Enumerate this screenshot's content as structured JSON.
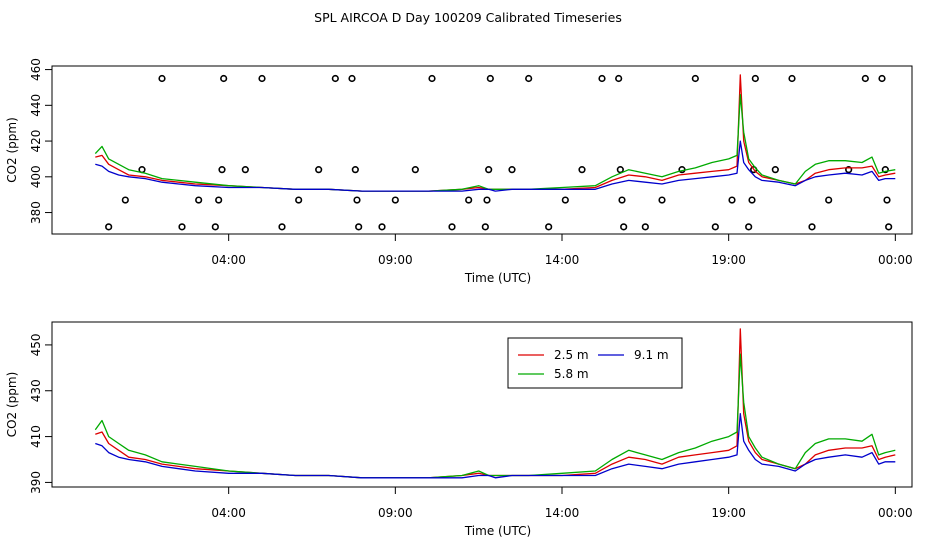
{
  "page_title": "SPL AIRCOA D  Day 100209  Calibrated Timeseries",
  "colors": {
    "s2_5": "#dd0000",
    "s5_8": "#00aa00",
    "s9_1": "#0000cc",
    "axis": "#000000"
  },
  "chart_data": [
    {
      "type": "line",
      "title": "SPL AIRCOA D  Day 100209  Calibrated Timeseries",
      "xlabel": "Time (UTC)",
      "ylabel": "CO2 (ppm)",
      "xlim": [
        -1.3,
        24.5
      ],
      "ylim": [
        368,
        462
      ],
      "x_ticks": [
        4,
        9,
        14,
        19,
        24
      ],
      "x_tick_labels": [
        "04:00",
        "09:00",
        "14:00",
        "19:00",
        "00:00"
      ],
      "y_ticks": [
        380,
        400,
        420,
        440,
        460
      ],
      "y_tick_labels": [
        "380",
        "400",
        "420",
        "440",
        "460"
      ],
      "calibration_points": [
        {
          "x": 0.4,
          "y": 372
        },
        {
          "x": 0.9,
          "y": 387
        },
        {
          "x": 1.4,
          "y": 404
        },
        {
          "x": 2.0,
          "y": 455
        },
        {
          "x": 2.6,
          "y": 372
        },
        {
          "x": 3.1,
          "y": 387
        },
        {
          "x": 3.6,
          "y": 372
        },
        {
          "x": 3.7,
          "y": 387
        },
        {
          "x": 3.8,
          "y": 404
        },
        {
          "x": 3.85,
          "y": 455
        },
        {
          "x": 4.5,
          "y": 404
        },
        {
          "x": 5.0,
          "y": 455
        },
        {
          "x": 5.6,
          "y": 372
        },
        {
          "x": 6.1,
          "y": 387
        },
        {
          "x": 6.7,
          "y": 404
        },
        {
          "x": 7.2,
          "y": 455
        },
        {
          "x": 7.7,
          "y": 455
        },
        {
          "x": 7.8,
          "y": 404
        },
        {
          "x": 7.85,
          "y": 387
        },
        {
          "x": 7.9,
          "y": 372
        },
        {
          "x": 8.6,
          "y": 372
        },
        {
          "x": 9.0,
          "y": 387
        },
        {
          "x": 9.6,
          "y": 404
        },
        {
          "x": 10.1,
          "y": 455
        },
        {
          "x": 10.7,
          "y": 372
        },
        {
          "x": 11.2,
          "y": 387
        },
        {
          "x": 11.7,
          "y": 372
        },
        {
          "x": 11.75,
          "y": 387
        },
        {
          "x": 11.8,
          "y": 404
        },
        {
          "x": 11.85,
          "y": 455
        },
        {
          "x": 12.5,
          "y": 404
        },
        {
          "x": 13.0,
          "y": 455
        },
        {
          "x": 13.6,
          "y": 372
        },
        {
          "x": 14.1,
          "y": 387
        },
        {
          "x": 14.6,
          "y": 404
        },
        {
          "x": 15.2,
          "y": 455
        },
        {
          "x": 15.7,
          "y": 455
        },
        {
          "x": 15.75,
          "y": 404
        },
        {
          "x": 15.8,
          "y": 387
        },
        {
          "x": 15.85,
          "y": 372
        },
        {
          "x": 16.5,
          "y": 372
        },
        {
          "x": 17.0,
          "y": 387
        },
        {
          "x": 17.6,
          "y": 404
        },
        {
          "x": 18.0,
          "y": 455
        },
        {
          "x": 18.6,
          "y": 372
        },
        {
          "x": 19.1,
          "y": 387
        },
        {
          "x": 19.6,
          "y": 372
        },
        {
          "x": 19.7,
          "y": 387
        },
        {
          "x": 19.75,
          "y": 404
        },
        {
          "x": 19.8,
          "y": 455
        },
        {
          "x": 20.4,
          "y": 404
        },
        {
          "x": 20.9,
          "y": 455
        },
        {
          "x": 21.5,
          "y": 372
        },
        {
          "x": 22.0,
          "y": 387
        },
        {
          "x": 22.6,
          "y": 404
        },
        {
          "x": 23.1,
          "y": 455
        },
        {
          "x": 23.6,
          "y": 455
        },
        {
          "x": 23.7,
          "y": 404
        },
        {
          "x": 23.75,
          "y": 387
        },
        {
          "x": 23.8,
          "y": 372
        }
      ],
      "series": [
        {
          "name": "2.5 m",
          "color": "#dd0000",
          "x": [
            0,
            0.2,
            0.4,
            0.7,
            1.0,
            1.5,
            2.0,
            2.5,
            3.0,
            4.0,
            5.0,
            6.0,
            7.0,
            8.0,
            9.0,
            10.0,
            11.0,
            11.5,
            11.8,
            12.0,
            12.5,
            13.0,
            14.0,
            15.0,
            15.5,
            16.0,
            16.5,
            17.0,
            17.5,
            18.0,
            18.5,
            19.0,
            19.25,
            19.35,
            19.45,
            19.6,
            19.8,
            20.0,
            20.5,
            21.0,
            21.3,
            21.6,
            22.0,
            22.5,
            23.0,
            23.3,
            23.5,
            23.7,
            24.0
          ],
          "y": [
            411,
            412,
            407,
            404,
            401,
            400,
            398,
            397,
            396,
            395,
            394,
            393,
            393,
            392,
            392,
            392,
            393,
            394,
            393,
            393,
            393,
            393,
            393,
            394,
            398,
            401,
            400,
            398,
            401,
            402,
            403,
            404,
            406,
            457,
            420,
            408,
            403,
            400,
            398,
            396,
            398,
            402,
            404,
            405,
            405,
            406,
            400,
            401,
            402
          ]
        },
        {
          "name": "5.8 m",
          "color": "#00aa00",
          "x": [
            0,
            0.2,
            0.4,
            0.7,
            1.0,
            1.5,
            2.0,
            2.5,
            3.0,
            4.0,
            5.0,
            6.0,
            7.0,
            8.0,
            9.0,
            10.0,
            11.0,
            11.5,
            11.8,
            12.0,
            12.5,
            13.0,
            14.0,
            15.0,
            15.5,
            16.0,
            16.5,
            17.0,
            17.5,
            18.0,
            18.5,
            19.0,
            19.25,
            19.35,
            19.45,
            19.6,
            19.8,
            20.0,
            20.5,
            21.0,
            21.3,
            21.6,
            22.0,
            22.5,
            23.0,
            23.3,
            23.5,
            23.7,
            24.0
          ],
          "y": [
            413,
            417,
            410,
            407,
            404,
            402,
            399,
            398,
            397,
            395,
            394,
            393,
            393,
            392,
            392,
            392,
            393,
            395,
            393,
            393,
            393,
            393,
            394,
            395,
            400,
            404,
            402,
            400,
            403,
            405,
            408,
            410,
            412,
            446,
            425,
            410,
            405,
            401,
            398,
            396,
            403,
            407,
            409,
            409,
            408,
            411,
            402,
            403,
            404
          ]
        },
        {
          "name": "9.1 m",
          "color": "#0000cc",
          "x": [
            0,
            0.2,
            0.4,
            0.7,
            1.0,
            1.5,
            2.0,
            2.5,
            3.0,
            4.0,
            5.0,
            6.0,
            7.0,
            8.0,
            9.0,
            10.0,
            11.0,
            11.5,
            11.8,
            12.0,
            12.5,
            13.0,
            14.0,
            15.0,
            15.5,
            16.0,
            16.5,
            17.0,
            17.5,
            18.0,
            18.5,
            19.0,
            19.25,
            19.35,
            19.45,
            19.6,
            19.8,
            20.0,
            20.5,
            21.0,
            21.3,
            21.6,
            22.0,
            22.5,
            23.0,
            23.3,
            23.5,
            23.7,
            24.0
          ],
          "y": [
            407,
            406,
            403,
            401,
            400,
            399,
            397,
            396,
            395,
            394,
            394,
            393,
            393,
            392,
            392,
            392,
            392,
            393,
            393,
            392,
            393,
            393,
            393,
            393,
            396,
            398,
            397,
            396,
            398,
            399,
            400,
            401,
            402,
            420,
            408,
            404,
            400,
            398,
            397,
            395,
            398,
            400,
            401,
            402,
            401,
            403,
            398,
            399,
            399
          ]
        }
      ]
    },
    {
      "type": "line",
      "title": "",
      "xlabel": "Time (UTC)",
      "ylabel": "CO2 (ppm)",
      "xlim": [
        -1.3,
        24.5
      ],
      "ylim": [
        388,
        460
      ],
      "x_ticks": [
        4,
        9,
        14,
        19,
        24
      ],
      "x_tick_labels": [
        "04:00",
        "09:00",
        "14:00",
        "19:00",
        "00:00"
      ],
      "y_ticks": [
        390,
        410,
        430,
        450
      ],
      "y_tick_labels": [
        "390",
        "410",
        "430",
        "450"
      ],
      "legend": {
        "position": "top-right",
        "entries": [
          "2.5 m",
          "5.8 m",
          "9.1 m"
        ]
      },
      "series": [
        {
          "name": "2.5 m",
          "color": "#dd0000",
          "x": [
            0,
            0.2,
            0.4,
            0.7,
            1.0,
            1.5,
            2.0,
            2.5,
            3.0,
            4.0,
            5.0,
            6.0,
            7.0,
            8.0,
            9.0,
            10.0,
            11.0,
            11.5,
            11.8,
            12.0,
            12.5,
            13.0,
            14.0,
            15.0,
            15.5,
            16.0,
            16.5,
            17.0,
            17.5,
            18.0,
            18.5,
            19.0,
            19.25,
            19.35,
            19.45,
            19.6,
            19.8,
            20.0,
            20.5,
            21.0,
            21.3,
            21.6,
            22.0,
            22.5,
            23.0,
            23.3,
            23.5,
            23.7,
            24.0
          ],
          "y": [
            411,
            412,
            407,
            404,
            401,
            400,
            398,
            397,
            396,
            395,
            394,
            393,
            393,
            392,
            392,
            392,
            393,
            394,
            393,
            393,
            393,
            393,
            393,
            394,
            398,
            401,
            400,
            398,
            401,
            402,
            403,
            404,
            406,
            457,
            420,
            408,
            403,
            400,
            398,
            396,
            398,
            402,
            404,
            405,
            405,
            406,
            400,
            401,
            402
          ]
        },
        {
          "name": "5.8 m",
          "color": "#00aa00",
          "x": [
            0,
            0.2,
            0.4,
            0.7,
            1.0,
            1.5,
            2.0,
            2.5,
            3.0,
            4.0,
            5.0,
            6.0,
            7.0,
            8.0,
            9.0,
            10.0,
            11.0,
            11.5,
            11.8,
            12.0,
            12.5,
            13.0,
            14.0,
            15.0,
            15.5,
            16.0,
            16.5,
            17.0,
            17.5,
            18.0,
            18.5,
            19.0,
            19.25,
            19.35,
            19.45,
            19.6,
            19.8,
            20.0,
            20.5,
            21.0,
            21.3,
            21.6,
            22.0,
            22.5,
            23.0,
            23.3,
            23.5,
            23.7,
            24.0
          ],
          "y": [
            413,
            417,
            410,
            407,
            404,
            402,
            399,
            398,
            397,
            395,
            394,
            393,
            393,
            392,
            392,
            392,
            393,
            395,
            393,
            393,
            393,
            393,
            394,
            395,
            400,
            404,
            402,
            400,
            403,
            405,
            408,
            410,
            412,
            446,
            425,
            410,
            405,
            401,
            398,
            396,
            403,
            407,
            409,
            409,
            408,
            411,
            402,
            403,
            404
          ]
        },
        {
          "name": "9.1 m",
          "color": "#0000cc",
          "x": [
            0,
            0.2,
            0.4,
            0.7,
            1.0,
            1.5,
            2.0,
            2.5,
            3.0,
            4.0,
            5.0,
            6.0,
            7.0,
            8.0,
            9.0,
            10.0,
            11.0,
            11.5,
            11.8,
            12.0,
            12.5,
            13.0,
            14.0,
            15.0,
            15.5,
            16.0,
            16.5,
            17.0,
            17.5,
            18.0,
            18.5,
            19.0,
            19.25,
            19.35,
            19.45,
            19.6,
            19.8,
            20.0,
            20.5,
            21.0,
            21.3,
            21.6,
            22.0,
            22.5,
            23.0,
            23.3,
            23.5,
            23.7,
            24.0
          ],
          "y": [
            407,
            406,
            403,
            401,
            400,
            399,
            397,
            396,
            395,
            394,
            394,
            393,
            393,
            392,
            392,
            392,
            392,
            393,
            393,
            392,
            393,
            393,
            393,
            393,
            396,
            398,
            397,
            396,
            398,
            399,
            400,
            401,
            402,
            420,
            408,
            404,
            400,
            398,
            397,
            395,
            398,
            400,
            401,
            402,
            401,
            403,
            398,
            399,
            399
          ]
        }
      ]
    }
  ]
}
